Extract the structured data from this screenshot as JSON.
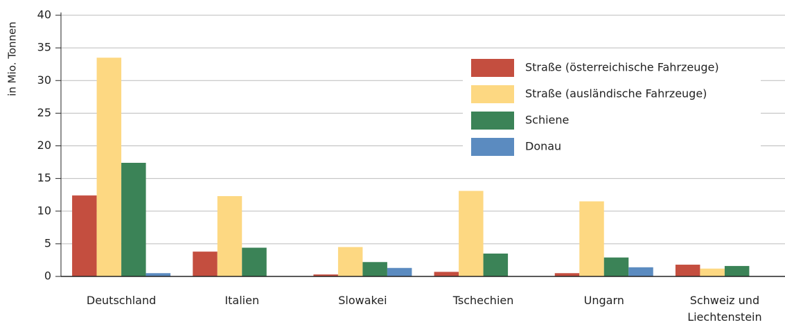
{
  "chart_data": {
    "type": "bar",
    "ylabel": "in Mio. Tonnen",
    "categories": [
      "Deutschland",
      "Italien",
      "Slowakei",
      "Tschechien",
      "Ungarn",
      "Schweiz und Liechtenstein"
    ],
    "series": [
      {
        "name": "Straße (österreichische Fahrzeuge)",
        "color": "#c44e3f",
        "values": [
          12.4,
          3.8,
          0.3,
          0.7,
          0.5,
          1.8
        ]
      },
      {
        "name": "Straße (ausländische Fahrzeuge)",
        "color": "#fdd882",
        "values": [
          33.5,
          12.3,
          4.5,
          13.1,
          11.5,
          1.2
        ]
      },
      {
        "name": "Schiene",
        "color": "#3b8357",
        "values": [
          17.4,
          4.4,
          2.2,
          3.5,
          2.9,
          1.6
        ]
      },
      {
        "name": "Donau",
        "color": "#5b8bc0",
        "values": [
          0.5,
          0,
          1.3,
          0,
          1.4,
          0
        ]
      }
    ],
    "ylim": [
      0,
      40
    ],
    "yticks": [
      0,
      5,
      10,
      15,
      20,
      25,
      30,
      35,
      40
    ],
    "grid": true,
    "legend": "upper right"
  }
}
